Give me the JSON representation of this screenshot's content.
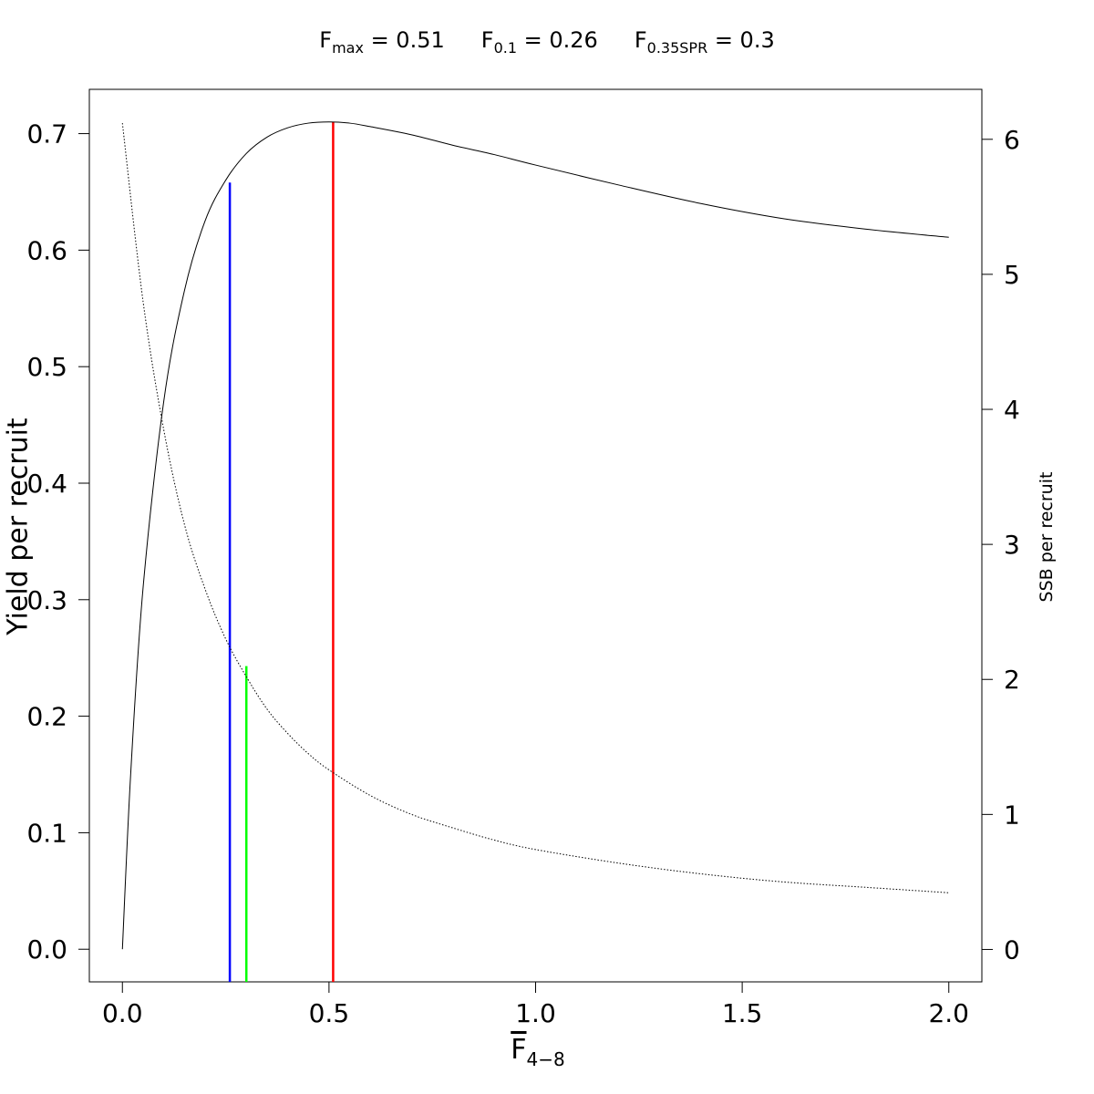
{
  "header": {
    "fmax_base": "F",
    "fmax_sub": "max",
    "fmax_val": " = 0.51",
    "f01_base": "F",
    "f01_sub": "0.1",
    "f01_val": " = 0.26",
    "fspr_base": "F",
    "fspr_sub": "0.35SPR",
    "fspr_val": " = 0.3"
  },
  "chart_data": {
    "type": "line",
    "xlabel_base": "F",
    "xlabel_sub": "4−8",
    "ylabel": "Yield per recruit",
    "y2label": "SSB per recruit",
    "xlim": [
      -0.08,
      2.08
    ],
    "ylim": [
      -0.028,
      0.738
    ],
    "y2lim": [
      -0.24,
      6.37
    ],
    "x_ticks": [
      0.0,
      0.5,
      1.0,
      1.5,
      2.0
    ],
    "x_tick_labels": [
      "0.0",
      "0.5",
      "1.0",
      "1.5",
      "2.0"
    ],
    "y_ticks": [
      0.0,
      0.1,
      0.2,
      0.3,
      0.4,
      0.5,
      0.6,
      0.7
    ],
    "y_tick_labels": [
      "0.0",
      "0.1",
      "0.2",
      "0.3",
      "0.4",
      "0.5",
      "0.6",
      "0.7"
    ],
    "y2_ticks": [
      0,
      1,
      2,
      3,
      4,
      5,
      6
    ],
    "y2_tick_labels": [
      "0",
      "1",
      "2",
      "3",
      "4",
      "5",
      "6"
    ],
    "grid": false,
    "series": [
      {
        "name": "",
        "axis": "left",
        "style": "solid",
        "color": "#000000",
        "x": [
          0.0,
          0.02,
          0.05,
          0.1,
          0.15,
          0.2,
          0.25,
          0.3,
          0.35,
          0.4,
          0.45,
          0.5,
          0.55,
          0.6,
          0.7,
          0.8,
          0.9,
          1.0,
          1.2,
          1.4,
          1.6,
          1.8,
          2.0
        ],
        "y": [
          0.0,
          0.15,
          0.31,
          0.47,
          0.565,
          0.625,
          0.66,
          0.683,
          0.697,
          0.705,
          0.709,
          0.71,
          0.709,
          0.706,
          0.699,
          0.69,
          0.682,
          0.673,
          0.656,
          0.64,
          0.627,
          0.618,
          0.611
        ]
      },
      {
        "name": "",
        "axis": "right",
        "style": "dotted",
        "color": "#000000",
        "x": [
          0.0,
          0.05,
          0.1,
          0.15,
          0.2,
          0.25,
          0.3,
          0.35,
          0.4,
          0.45,
          0.5,
          0.6,
          0.7,
          0.8,
          0.9,
          1.0,
          1.2,
          1.4,
          1.6,
          1.8,
          2.0
        ],
        "y": [
          6.12,
          4.8,
          3.85,
          3.15,
          2.67,
          2.3,
          2.02,
          1.78,
          1.6,
          1.45,
          1.33,
          1.14,
          1.0,
          0.9,
          0.81,
          0.74,
          0.64,
          0.56,
          0.5,
          0.46,
          0.42
        ]
      }
    ],
    "reference_lines": [
      {
        "label": "F0.1",
        "x": 0.26,
        "ymax": 0.658,
        "color": "#0000ff"
      },
      {
        "label": "F0.35SPR",
        "x": 0.3,
        "ymax": 0.243,
        "color": "#00ff00"
      },
      {
        "label": "Fmax",
        "x": 0.51,
        "ymax": 0.71,
        "color": "#ff0000"
      }
    ]
  }
}
